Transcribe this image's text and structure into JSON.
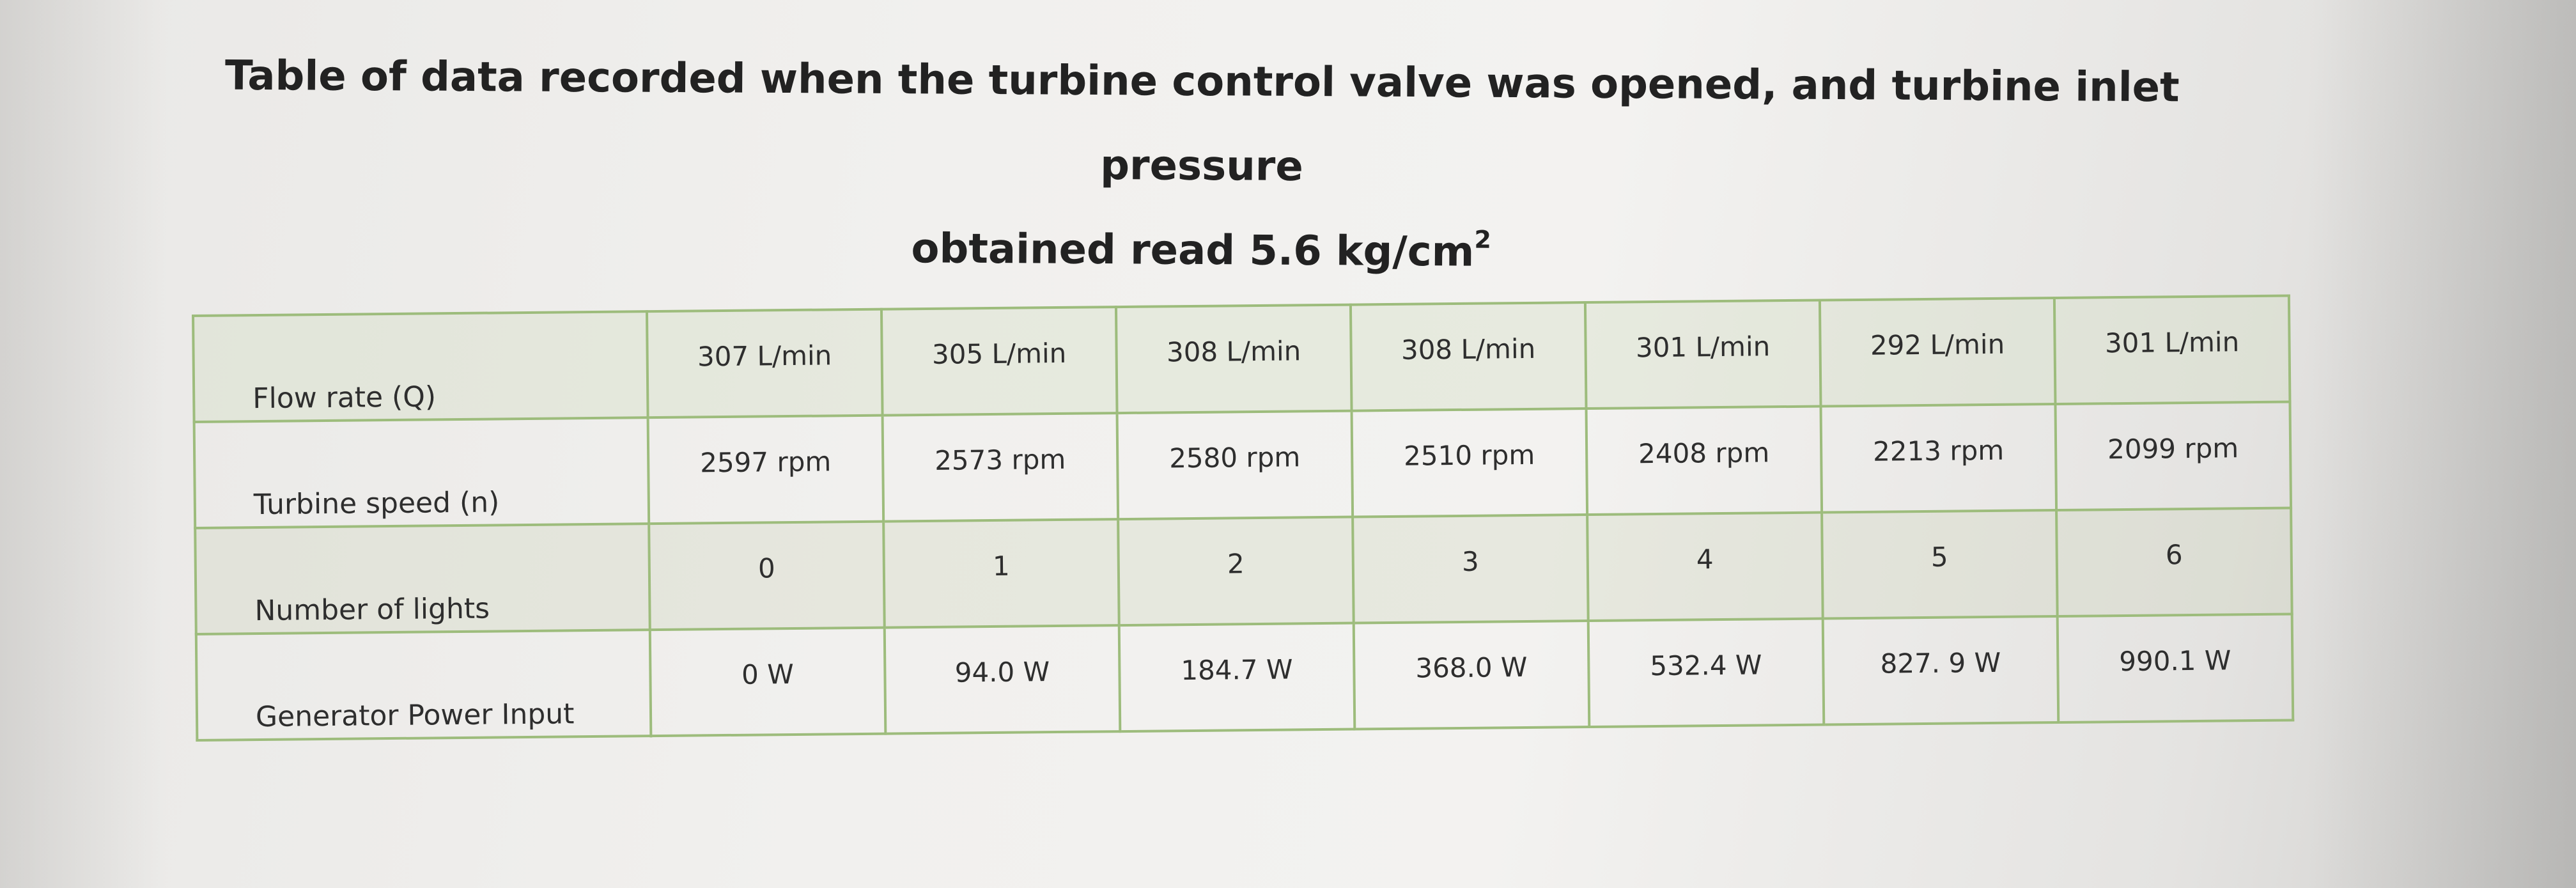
{
  "title": {
    "line1": "Table of data recorded when the turbine control valve was opened, and turbine inlet pressure",
    "line2_text": "obtained read 5.6 kg/cm",
    "line2_superscript": "2"
  },
  "table": {
    "rows": [
      {
        "label": "Flow rate (Q)",
        "cells": [
          "307 L/min",
          "305 L/min",
          "308 L/min",
          "308 L/min",
          "301 L/min",
          "292 L/min",
          "301 L/min"
        ]
      },
      {
        "label": "Turbine speed (n)",
        "cells": [
          "2597 rpm",
          "2573 rpm",
          "2580 rpm",
          "2510 rpm",
          "2408 rpm",
          "2213 rpm",
          "2099 rpm"
        ]
      },
      {
        "label": "Number of lights",
        "cells": [
          "0",
          "1",
          "2",
          "3",
          "4",
          "5",
          "6"
        ]
      },
      {
        "label": "Generator Power Input",
        "cells": [
          "0 W",
          "94.0 W",
          "184.7 W",
          "368.0 W",
          "532.4 W",
          "827. 9 W",
          "990.1 W"
        ]
      }
    ]
  },
  "colors": {
    "grid_border": "#9dbc7c",
    "text": "#2e2e2e"
  }
}
